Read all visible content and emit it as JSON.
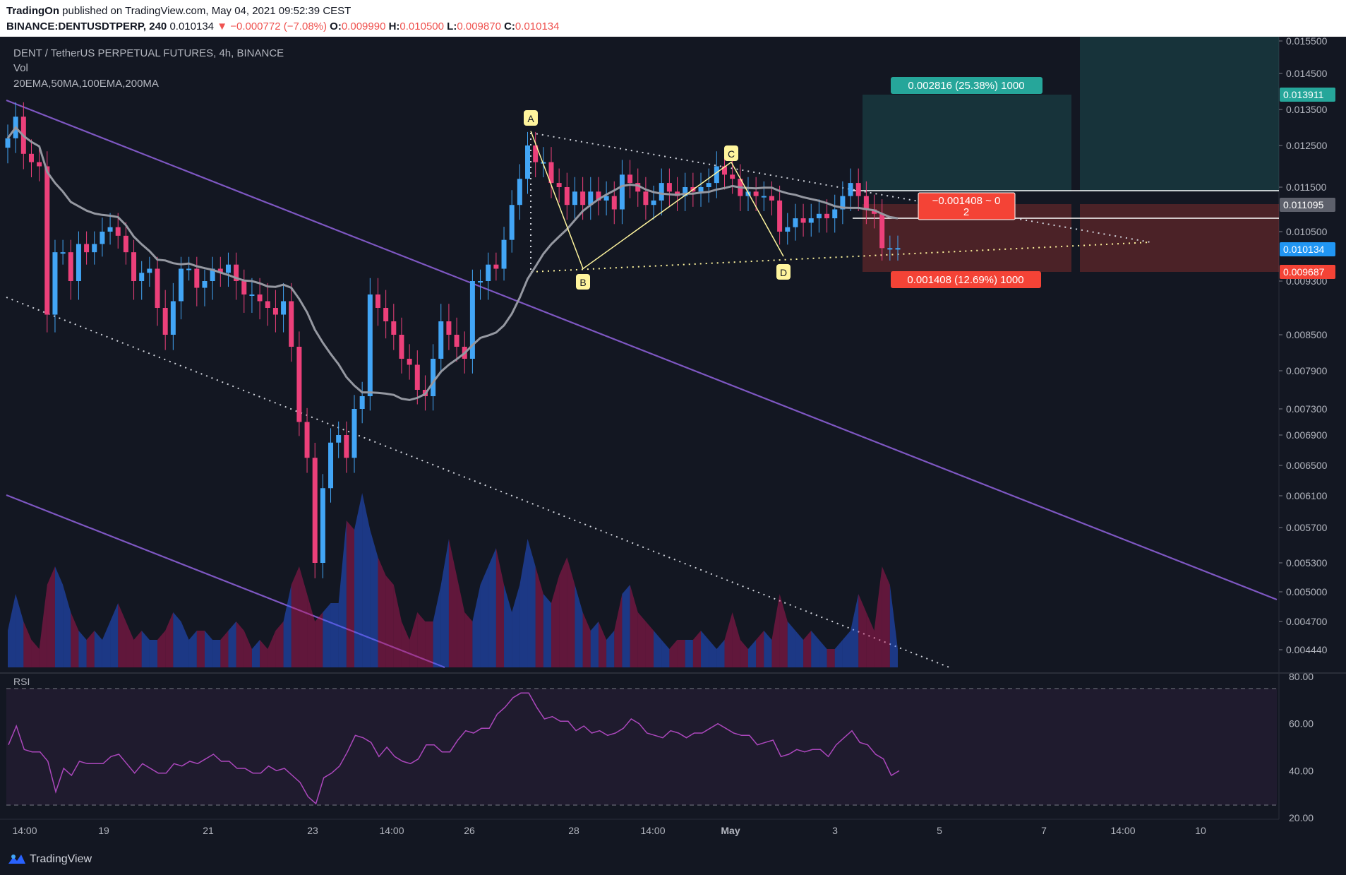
{
  "header": {
    "publisher": "TradingOn",
    "published_text": "published on TradingView.com, May 04, 2021 09:52:39 CEST",
    "symbol": "BINANCE:DENTUSDTPERP, 240",
    "last": "0.010134",
    "change": "▼ −0.000772 (−7.08%)",
    "o_label": "O:",
    "o_value": "0.009990",
    "h_label": "H:",
    "h_value": "0.010500",
    "l_label": "L:",
    "l_value": "0.009870",
    "c_label": "C:",
    "c_value": "0.010134"
  },
  "legend": {
    "title": "DENT / TetherUS PERPETUAL FUTURES, 4h, BINANCE",
    "vol": "Vol",
    "ma": "20EMA,50MA,100EMA,200MA"
  },
  "rsi_label": "RSI",
  "footer": {
    "brand": "TradingView"
  },
  "colors": {
    "background": "#131722",
    "up": "#42a5f5",
    "down": "#ec407a",
    "ma": "#9598a1",
    "channel": "#7e57c2",
    "pattern": "#fff59d",
    "target": "#26a69a",
    "stop": "#f44336",
    "rsi": "#ab47bc"
  },
  "chart_data": {
    "type": "candlestick",
    "y_ticks": [
      "0.015500",
      "0.014500",
      "0.013500",
      "0.012500",
      "0.011500",
      "0.010500",
      "0.009300",
      "0.008500",
      "0.007900",
      "0.007300",
      "0.006900",
      "0.006500",
      "0.006100",
      "0.005700",
      "0.005300",
      "0.005000",
      "0.004700",
      "0.004440"
    ],
    "x_ticks": [
      "14:00",
      "19",
      "21",
      "23",
      "14:00",
      "26",
      "28",
      "14:00",
      "May",
      "3",
      "5",
      "7",
      "14:00",
      "10"
    ],
    "price_labels": [
      {
        "text": "0.013911",
        "kind": "target"
      },
      {
        "text": "0.011095",
        "kind": "entry"
      },
      {
        "text": "0.010134",
        "kind": "last"
      },
      {
        "text": "0.009687",
        "kind": "stop"
      }
    ],
    "position": {
      "target_label": "0.002816 (25.38%) 1000",
      "stop_label": "0.001408 (12.69%) 1000",
      "center_label_1": "−0.001408 ~ 0",
      "center_label_2": "2"
    },
    "pattern_points": [
      {
        "label": "A",
        "value": 0.0129
      },
      {
        "label": "B",
        "value": 0.0096
      },
      {
        "label": "C",
        "value": 0.0121
      },
      {
        "label": "D",
        "value": 0.0099
      }
    ],
    "rsi": {
      "ticks": [
        "80.00",
        "60.00",
        "40.00",
        "20.00"
      ],
      "upper": 75,
      "lower": 25,
      "values": [
        51,
        59,
        49,
        48,
        48,
        44,
        31,
        41,
        38,
        44,
        43,
        43,
        43,
        46,
        47,
        43,
        39,
        43,
        41,
        39,
        39,
        43,
        42,
        44,
        43,
        45,
        47,
        44,
        44,
        41,
        41,
        39,
        39,
        42,
        40,
        41,
        38,
        35,
        29,
        26,
        37,
        39,
        42,
        48,
        55,
        54,
        52,
        46,
        50,
        46,
        44,
        43,
        45,
        51,
        51,
        48,
        48,
        53,
        57,
        56,
        58,
        58,
        64,
        67,
        71,
        73,
        73,
        67,
        62,
        63,
        61,
        61,
        57,
        59,
        56,
        57,
        55,
        56,
        58,
        62,
        60,
        56,
        55,
        54,
        57,
        56,
        54,
        56,
        56,
        58,
        60,
        58,
        56,
        55,
        55,
        51,
        52,
        53,
        46,
        47,
        49,
        48,
        49,
        49,
        46,
        51,
        54,
        57,
        52,
        51,
        47,
        45,
        38,
        40
      ]
    }
  }
}
